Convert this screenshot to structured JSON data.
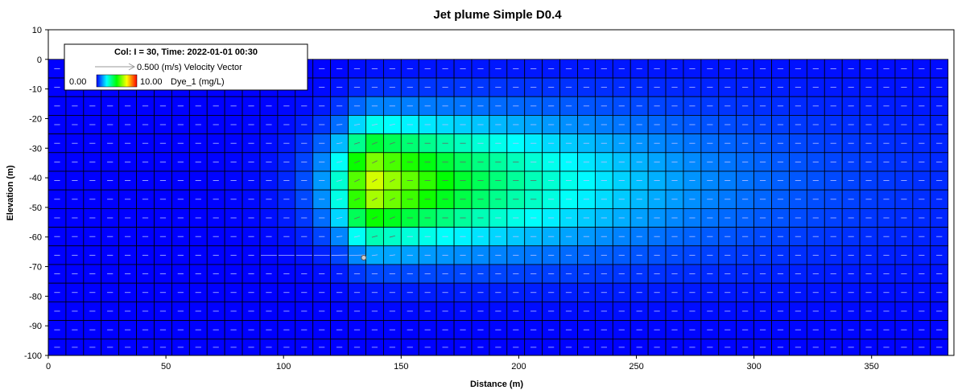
{
  "chart_data": {
    "type": "heatmap",
    "title": "Jet plume Simple D0.4",
    "xlabel": "Distance (m)",
    "ylabel": "Elevation (m)",
    "xlim": [
      0,
      385
    ],
    "ylim": [
      -100,
      10
    ],
    "x_ticks": [
      "0",
      "50",
      "100",
      "150",
      "200",
      "250",
      "300",
      "350"
    ],
    "y_ticks": [
      "10",
      "0",
      "-10",
      "-20",
      "-30",
      "-40",
      "-50",
      "-60",
      "-70",
      "-80",
      "-90",
      "-100"
    ],
    "legend": {
      "position": "top-left",
      "header": "Col: I = 30, Time: 2022-01-01 00:30",
      "vector_label": "0.500 (m/s) Velocity Vector",
      "color_min": "0.00",
      "color_max": "10.00",
      "color_label": "Dye_1 (mg/L)"
    },
    "colormap": [
      "#0000ff",
      "#00ffff",
      "#00ff00",
      "#ffff00",
      "#ff0000"
    ],
    "color_range": [
      0,
      10
    ],
    "grid": {
      "x_edges": [
        0,
        7.5,
        15,
        22.5,
        30,
        37.5,
        45,
        52.5,
        60,
        67.5,
        75,
        82.5,
        90,
        97.5,
        105,
        112.5,
        120,
        127.5,
        135,
        142.5,
        150,
        157.5,
        165,
        172.5,
        180,
        187.5,
        195,
        202.5,
        210,
        217.5,
        225,
        232.5,
        240,
        247.5,
        255,
        262.5,
        270,
        277.5,
        285,
        292.5,
        300,
        307.5,
        315,
        322.5,
        330,
        337.5,
        345,
        352.5,
        360,
        367.5,
        375,
        382.5
      ],
      "z_edges": [
        0,
        -6.3,
        -12.6,
        -18.9,
        -25.2,
        -31.5,
        -37.8,
        -44.1,
        -50.4,
        -56.7,
        -63,
        -69.3,
        -75.6,
        -81.9,
        -88.2,
        -94.5,
        -100
      ]
    },
    "plume": {
      "source": [
        130,
        -67
      ],
      "core_x": 134,
      "center_z": -42,
      "description_values": {
        "max_dye": 7.5,
        "ambient_dye": 0.0
      }
    },
    "velocity": {
      "ambient_u": 0.25,
      "jet_peak": 0.5
    }
  }
}
